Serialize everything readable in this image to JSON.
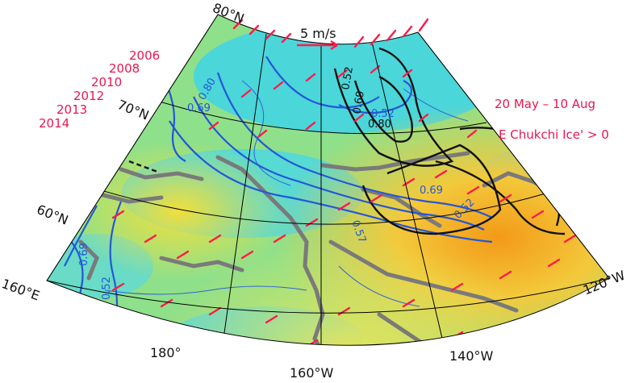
{
  "map": {
    "lat_labels": [
      "80°N",
      "70°N",
      "60°N"
    ],
    "lon_labels": [
      "160°E",
      "180°",
      "160°W",
      "140°W",
      "120°W"
    ],
    "years": [
      "2006",
      "2008",
      "2010",
      "2012",
      "2013",
      "2014"
    ],
    "period": "20 May – 10 Aug",
    "condition": "E Chukchi Ice' > 0",
    "vector_scale": "5 m/s",
    "contour_labels_blue": [
      "0.80",
      "0.69",
      "0.52",
      "0.57",
      "0.69",
      "0.52",
      "0.69",
      "0.52"
    ],
    "contour_labels_black": [
      "0.52",
      "0.69",
      "0.80"
    ],
    "colors": {
      "vector": "#ff1a4a",
      "blue_contour": "#2457d6",
      "black_contour": "#111111",
      "land": "#7a7a7a",
      "shading_low": "#34d8ea",
      "shading_mid": "#9be36b",
      "shading_high": "#f59a1c"
    }
  }
}
